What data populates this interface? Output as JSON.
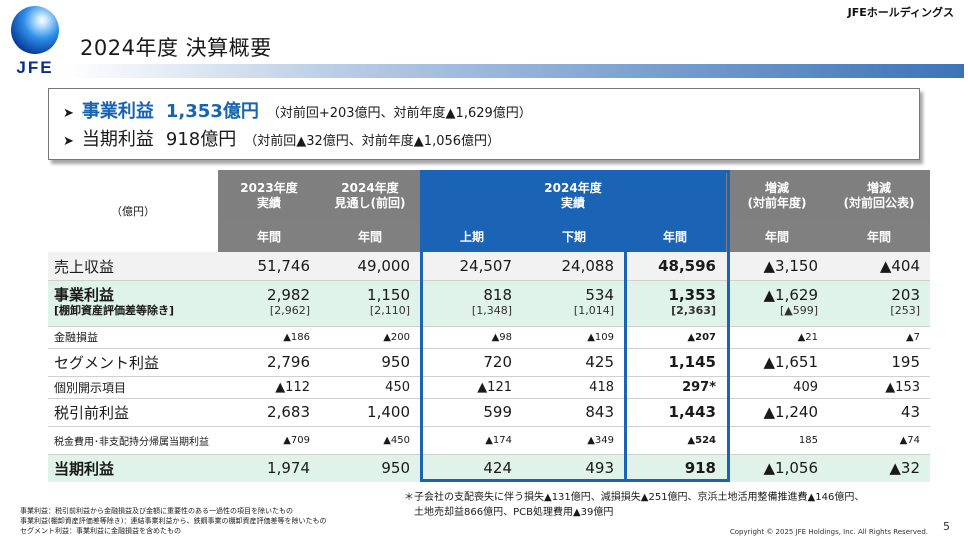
{
  "header": {
    "logo_text": "JFE",
    "title": "2024年度  決算概要",
    "company": "JFEホールディングス"
  },
  "summary": [
    {
      "arrow": "➤",
      "label": "事業利益",
      "value": "1,353億円",
      "note": "（対前回+203億円、対前年度▲1,629億円）"
    },
    {
      "arrow": "➤",
      "label": "当期利益",
      "value": "918億円",
      "note": "（対前回▲32億円、対前年度▲1,056億円）"
    }
  ],
  "table": {
    "unit": "（億円）",
    "headers": {
      "fy2023": "2023年度\n実績",
      "fy2024_forecast": "2024年度\n見通し(前回)",
      "fy2024_actual": "2024年度\n実績",
      "change_yoy": "増減\n(対前年度)",
      "change_forecast": "増減\n(対前回公表)"
    },
    "subheaders": [
      "年間",
      "年間",
      "上期",
      "下期",
      "年間",
      "年間",
      "年間"
    ],
    "rows": [
      {
        "label": "売上収益",
        "values": [
          "51,746",
          "49,000",
          "24,507",
          "24,088",
          "48,596",
          "▲3,150",
          "▲404"
        ]
      },
      {
        "label": "事業利益",
        "sublabel": "[棚卸資産評価差等除き]",
        "values": [
          "2,982",
          "1,150",
          "818",
          "534",
          "1,353",
          "▲1,629",
          "203"
        ],
        "subvalues": [
          "[2,962]",
          "[2,110]",
          "[1,348]",
          "[1,014]",
          "[2,363]",
          "[▲599]",
          "[253]"
        ]
      },
      {
        "label": "金融損益",
        "values": [
          "▲186",
          "▲200",
          "▲98",
          "▲109",
          "▲207",
          "▲21",
          "▲7"
        ]
      },
      {
        "label": "セグメント利益",
        "values": [
          "2,796",
          "950",
          "720",
          "425",
          "1,145",
          "▲1,651",
          "195"
        ]
      },
      {
        "label": "個別開示項目",
        "values": [
          "▲112",
          "450",
          "▲121",
          "418",
          "297*",
          "409",
          "▲153"
        ]
      },
      {
        "label": "税引前利益",
        "values": [
          "2,683",
          "1,400",
          "599",
          "843",
          "1,443",
          "▲1,240",
          "43"
        ]
      },
      {
        "label": "税金費用･非支配持分帰属当期利益",
        "values": [
          "▲709",
          "▲450",
          "▲174",
          "▲349",
          "▲524",
          "185",
          "▲74"
        ]
      },
      {
        "label": "当期利益",
        "values": [
          "1,974",
          "950",
          "424",
          "493",
          "918",
          "▲1,056",
          "▲32"
        ]
      }
    ]
  },
  "footnotes": {
    "star_line1": "＊子会社の支配喪失に伴う損失▲131億円、減損損失▲251億円、京浜土地活用整備推進費▲146億円、",
    "star_line2": "土地売却益866億円、PCB処理費用▲39億円",
    "def1": "事業利益：税引前利益から金融損益及び金額に重要性のある一過性の項目を除いたもの",
    "def2": "事業利益(棚卸資産評価差等除き)：連結事業利益から、鉄鋼事業の棚卸資産評価差等を除いたもの",
    "def3": "セグメント利益：事業利益に金融損益を含めたもの",
    "copyright": "Copyright © 2025 JFE Holdings, Inc. All Rights Reserved.",
    "page": "5"
  },
  "colors": {
    "accent_blue": "#1a63b5",
    "header_gray": "#7f7f7f",
    "shade_green": "#dff3ea",
    "highlight_text": "#1663b3"
  }
}
